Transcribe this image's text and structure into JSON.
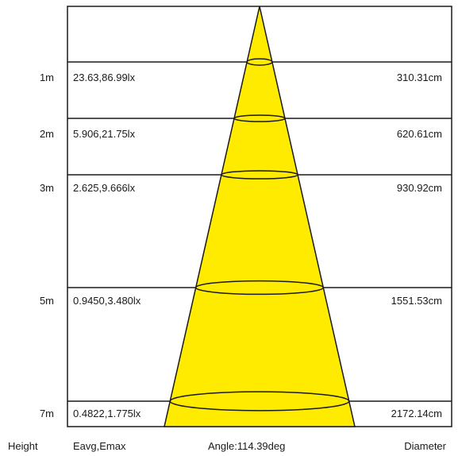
{
  "rows": [
    {
      "height": "1m",
      "illuminance": "23.63,86.99lx",
      "diameter": "310.31cm"
    },
    {
      "height": "2m",
      "illuminance": "5.906,21.75lx",
      "diameter": "620.61cm"
    },
    {
      "height": "3m",
      "illuminance": "2.625,9.666lx",
      "diameter": "930.92cm"
    },
    {
      "height": "5m",
      "illuminance": "0.9450,3.480lx",
      "diameter": "1551.53cm"
    },
    {
      "height": "7m",
      "illuminance": "0.4822,1.775lx",
      "diameter": "2172.14cm"
    }
  ],
  "footer": {
    "height_label": "Height",
    "illuminance_label": "Eavg,Emax",
    "angle_label": "Angle:114.39deg",
    "diameter_label": "Diameter"
  },
  "colors": {
    "beam": "#ffeb00",
    "line": "#1a1a1a"
  }
}
